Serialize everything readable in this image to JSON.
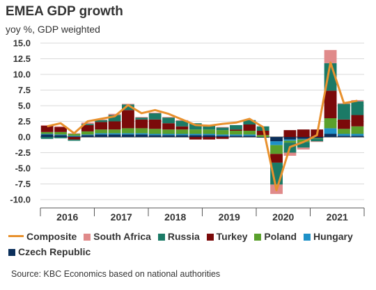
{
  "title": "EMEA GDP growth",
  "subtitle": "yoy %, GDP weighted",
  "source": "Source: KBC Economics based on national authorities",
  "chart_data": {
    "type": "bar",
    "stacked": true,
    "y_ticks": [
      "15.0",
      "12.5",
      "10.0",
      "7.5",
      "5.0",
      "2.5",
      "0.0",
      "-2.5",
      "-5.0",
      "-7.5",
      "-10.0"
    ],
    "ylim": [
      -10.0,
      15.0
    ],
    "x_year_labels": [
      "2016",
      "2017",
      "2018",
      "2019",
      "2020",
      "2021"
    ],
    "x_quarters": [
      "2016Q1",
      "2016Q2",
      "2016Q3",
      "2016Q4",
      "2017Q1",
      "2017Q2",
      "2017Q3",
      "2017Q4",
      "2018Q1",
      "2018Q2",
      "2018Q3",
      "2018Q4",
      "2019Q1",
      "2019Q2",
      "2019Q3",
      "2019Q4",
      "2020Q1",
      "2020Q2",
      "2020Q3",
      "2020Q4",
      "2021Q1",
      "2021Q2",
      "2021Q3",
      "2021Q4"
    ],
    "grid": "horizontal",
    "legend_position": "bottom",
    "series": [
      {
        "name": "Czech Republic",
        "color": "#0b2f5b",
        "values": [
          0.4,
          0.3,
          0.1,
          0.3,
          0.4,
          0.4,
          0.4,
          0.4,
          0.3,
          0.3,
          0.3,
          0.3,
          0.3,
          0.2,
          0.2,
          0.2,
          -0.1,
          -0.7,
          -0.4,
          -0.3,
          -0.2,
          0.5,
          0.2,
          0.2
        ]
      },
      {
        "name": "Hungary",
        "color": "#1e91c8",
        "values": [
          0.1,
          0.1,
          0.1,
          0.1,
          0.2,
          0.2,
          0.2,
          0.2,
          0.2,
          0.2,
          0.2,
          0.2,
          0.2,
          0.2,
          0.2,
          0.2,
          0.0,
          -0.6,
          -0.2,
          -0.1,
          0.0,
          0.9,
          0.3,
          0.3
        ]
      },
      {
        "name": "Poland",
        "color": "#5aa02c",
        "values": [
          0.3,
          0.4,
          0.3,
          0.5,
          0.6,
          0.6,
          0.8,
          0.8,
          0.8,
          0.7,
          0.7,
          0.7,
          0.7,
          0.7,
          0.6,
          0.6,
          0.3,
          -1.4,
          -0.3,
          -0.4,
          -0.1,
          1.6,
          0.8,
          1.2
        ]
      },
      {
        "name": "Turkey",
        "color": "#7b0a0a",
        "values": [
          1.0,
          0.8,
          -0.4,
          1.0,
          1.2,
          1.3,
          2.9,
          1.4,
          1.5,
          1.0,
          0.5,
          -0.4,
          -0.4,
          -0.3,
          0.2,
          1.0,
          0.7,
          -1.4,
          1.1,
          1.2,
          1.2,
          4.4,
          1.5,
          1.8
        ]
      },
      {
        "name": "Russia",
        "color": "#1b7a66",
        "values": [
          -0.3,
          -0.2,
          -0.2,
          0.2,
          0.3,
          1.0,
          0.9,
          0.3,
          1.0,
          0.9,
          0.9,
          1.0,
          0.6,
          0.4,
          0.7,
          0.7,
          0.7,
          -3.5,
          -1.6,
          -0.9,
          -0.4,
          4.4,
          2.5,
          2.2
        ]
      },
      {
        "name": "South Africa",
        "color": "#e08a8a",
        "values": [
          0.1,
          0.1,
          0.1,
          0.2,
          0.1,
          0.2,
          0.1,
          0.1,
          0.1,
          0.1,
          0.1,
          0.0,
          0.0,
          0.1,
          0.0,
          0.0,
          0.0,
          -1.5,
          -0.5,
          -0.3,
          -0.1,
          2.1,
          0.1,
          0.2
        ]
      },
      {
        "name": "Composite",
        "color": "#e8912e",
        "type": "line",
        "values": [
          1.7,
          2.2,
          0.6,
          2.5,
          2.9,
          3.3,
          5.1,
          3.8,
          4.3,
          3.7,
          2.8,
          1.9,
          1.8,
          2.1,
          2.3,
          2.9,
          1.6,
          -8.5,
          -1.6,
          -0.8,
          0.3,
          11.9,
          5.4,
          5.8
        ]
      }
    ]
  },
  "legend": {
    "items": [
      {
        "label": "Composite",
        "color": "#e8912e",
        "kind": "line"
      },
      {
        "label": "South Africa",
        "color": "#e08a8a",
        "kind": "box"
      },
      {
        "label": "Russia",
        "color": "#1b7a66",
        "kind": "box"
      },
      {
        "label": "Turkey",
        "color": "#7b0a0a",
        "kind": "box"
      },
      {
        "label": "Poland",
        "color": "#5aa02c",
        "kind": "box"
      },
      {
        "label": "Hungary",
        "color": "#1e91c8",
        "kind": "box"
      },
      {
        "label": "Czech Republic",
        "color": "#0b2f5b",
        "kind": "box"
      }
    ]
  }
}
